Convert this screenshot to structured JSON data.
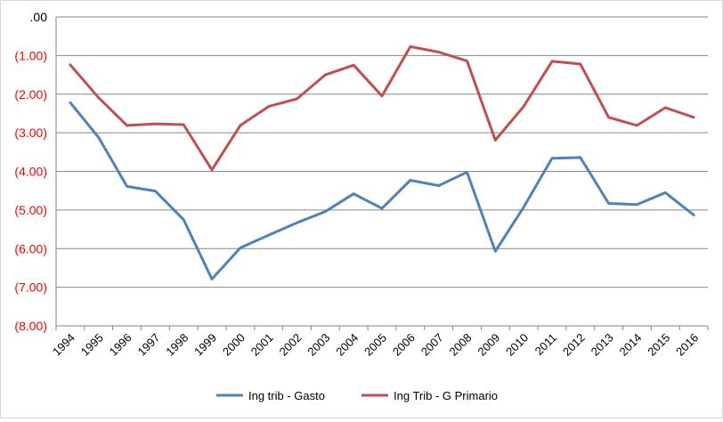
{
  "chart_data": {
    "type": "line",
    "title": "",
    "xlabel": "",
    "ylabel": "",
    "x": [
      "1994",
      "1995",
      "1996",
      "1997",
      "1998",
      "1999",
      "2000",
      "2001",
      "2002",
      "2003",
      "2004",
      "2005",
      "2006",
      "2007",
      "2008",
      "2009",
      "2010",
      "2011",
      "2012",
      "2013",
      "2014",
      "2015",
      "2016"
    ],
    "ylim": [
      -8,
      0
    ],
    "yticks": [
      {
        "value": 0,
        "label": ".00"
      },
      {
        "value": -1,
        "label": "(1.00)"
      },
      {
        "value": -2,
        "label": "(2.00)"
      },
      {
        "value": -3,
        "label": "(3.00)"
      },
      {
        "value": -4,
        "label": "(4.00)"
      },
      {
        "value": -5,
        "label": "(5.00)"
      },
      {
        "value": -6,
        "label": "(6.00)"
      },
      {
        "value": -7,
        "label": "(7.00)"
      },
      {
        "value": -8,
        "label": "(8.00)"
      }
    ],
    "negative_label_color": "#ff0000",
    "positive_label_color": "#000000",
    "grid": true,
    "legend_position": "bottom",
    "series": [
      {
        "name": "Ing trib - Gasto",
        "color": "#4f81bd",
        "values": [
          -2.22,
          -3.12,
          -4.39,
          -4.51,
          -5.25,
          -6.79,
          -5.98,
          -5.65,
          -5.33,
          -5.04,
          -4.58,
          -4.96,
          -4.23,
          -4.37,
          -4.02,
          -6.07,
          -4.93,
          -3.66,
          -3.64,
          -4.83,
          -4.86,
          -4.55,
          -5.13
        ]
      },
      {
        "name": "Ing Trib - G Primario",
        "color": "#c0504d",
        "values": [
          -1.24,
          -2.09,
          -2.81,
          -2.77,
          -2.79,
          -3.96,
          -2.81,
          -2.32,
          -2.12,
          -1.5,
          -1.25,
          -2.05,
          -0.77,
          -0.91,
          -1.14,
          -3.19,
          -2.32,
          -1.15,
          -1.22,
          -2.6,
          -2.81,
          -2.35,
          -2.6
        ]
      }
    ]
  }
}
